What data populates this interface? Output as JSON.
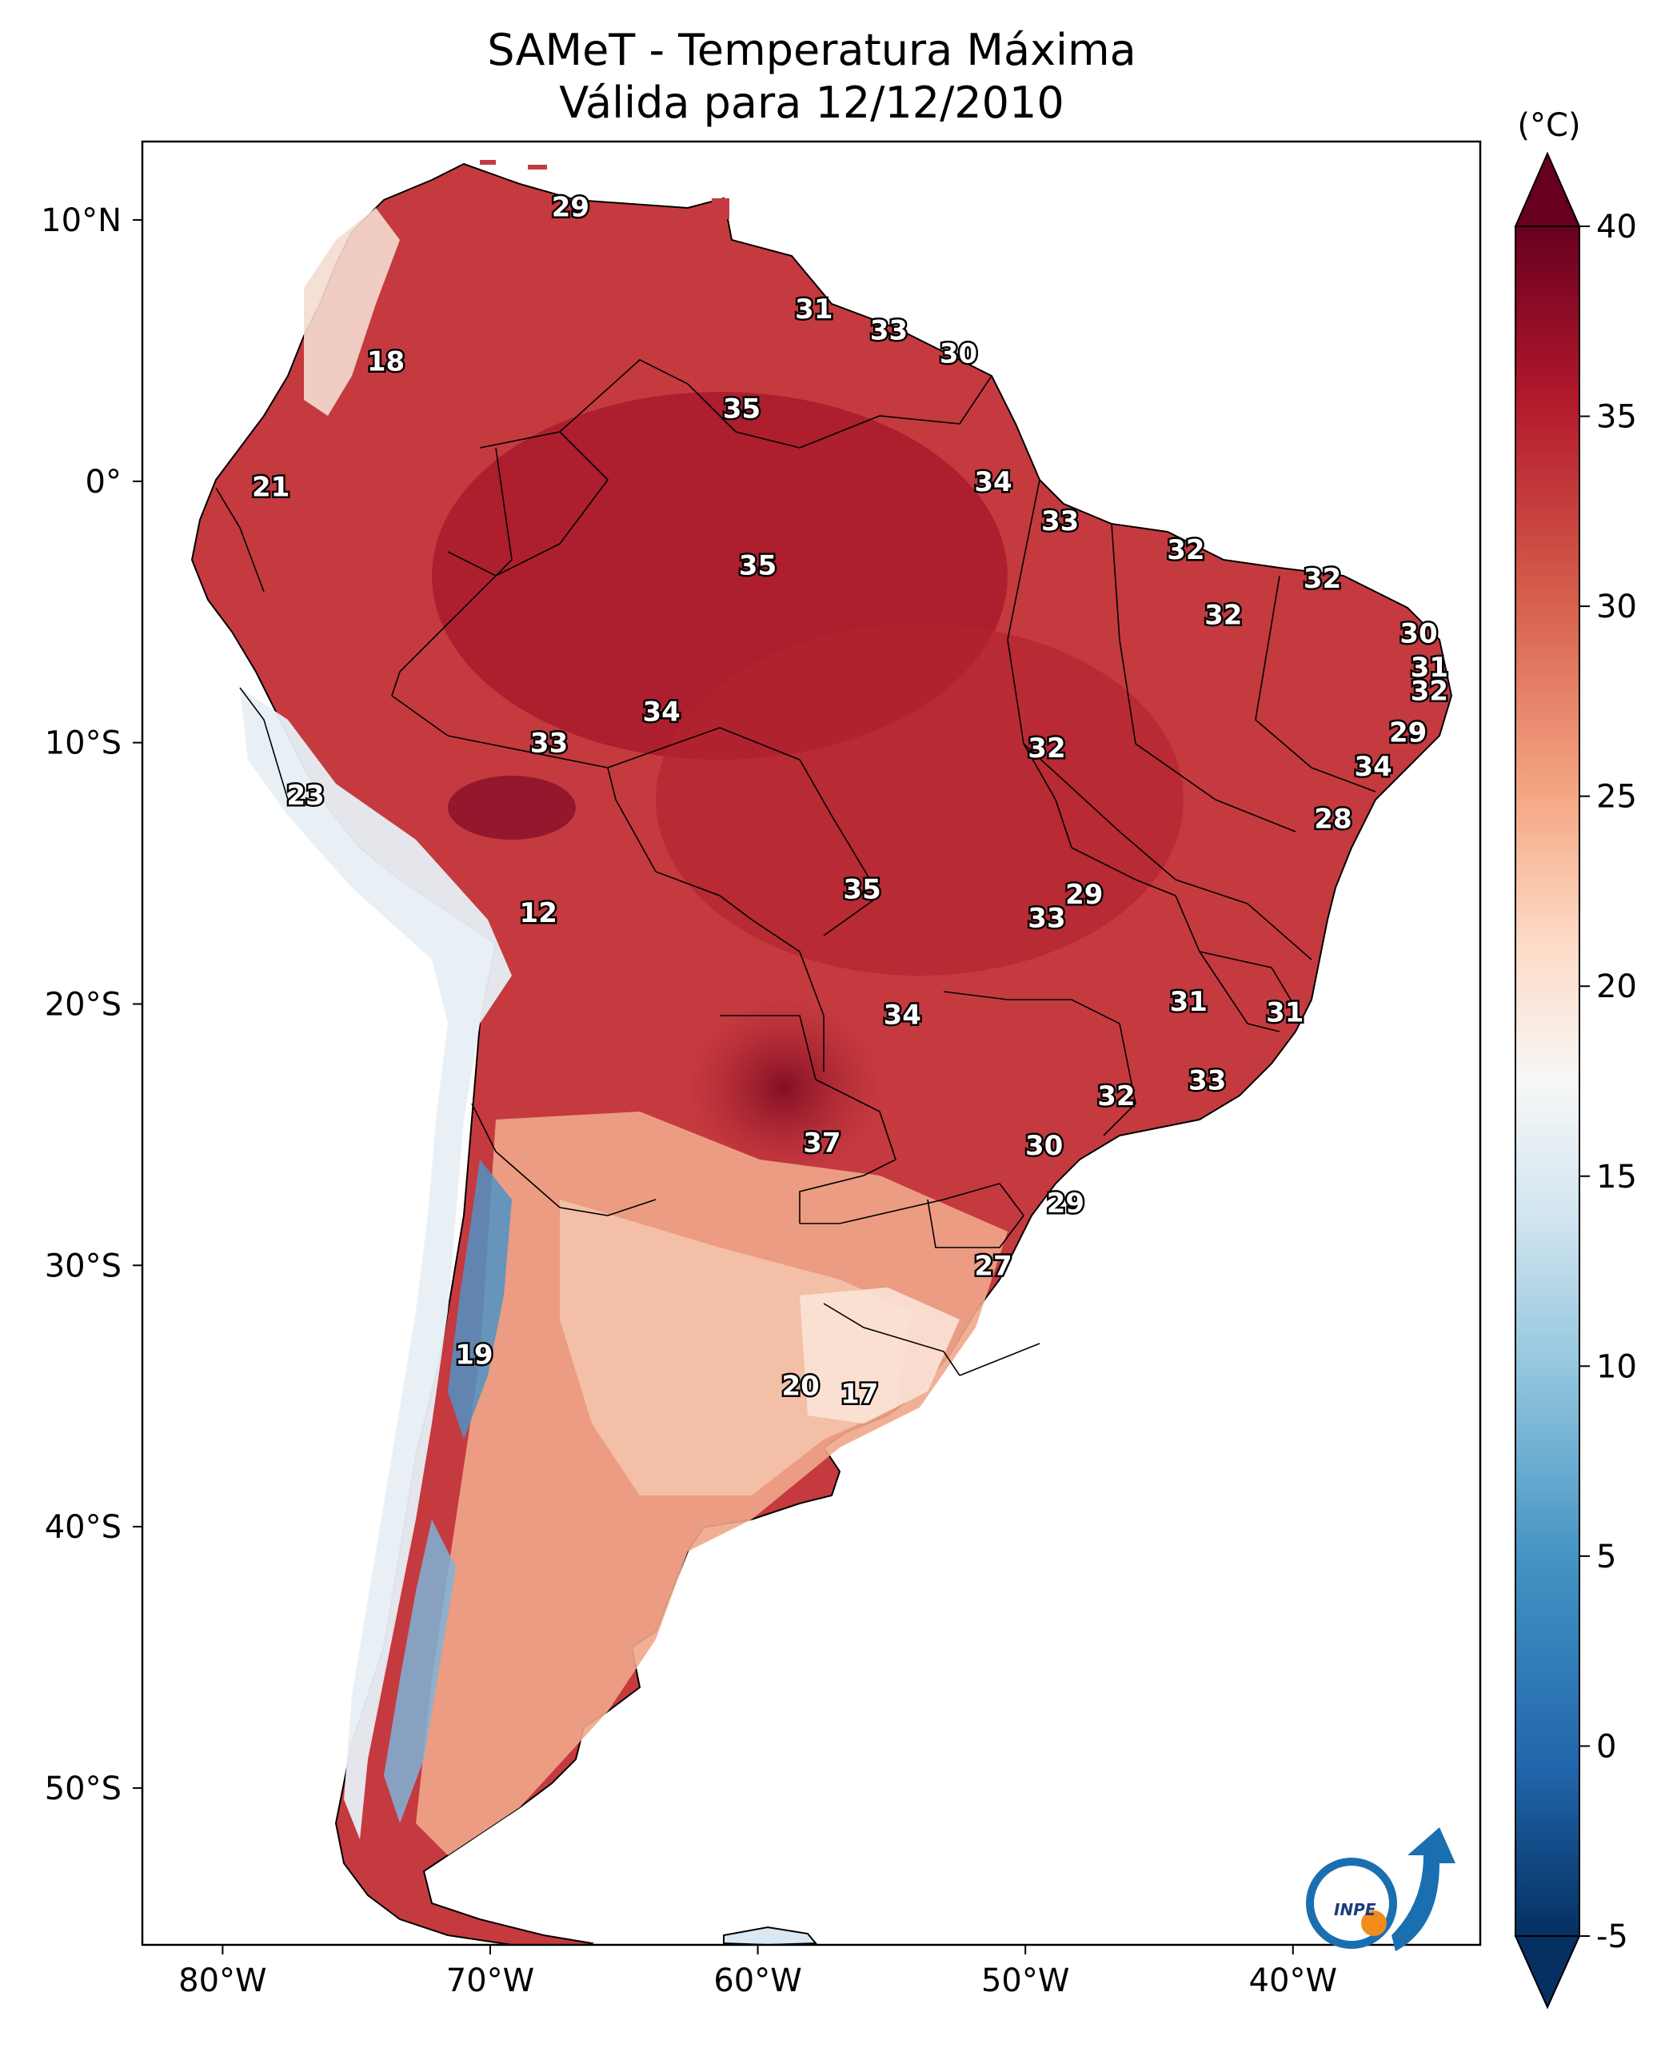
{
  "title": {
    "line1": "SAMeT - Temperatura Máxima",
    "line2": "Válida para 12/12/2010"
  },
  "map": {
    "lon_range": [
      -83,
      -33
    ],
    "lat_range": [
      -56,
      13
    ],
    "lon_ticks": [
      {
        "value": -80,
        "label": "80°W"
      },
      {
        "value": -70,
        "label": "70°W"
      },
      {
        "value": -60,
        "label": "60°W"
      },
      {
        "value": -50,
        "label": "50°W"
      },
      {
        "value": -40,
        "label": "40°W"
      }
    ],
    "lat_ticks": [
      {
        "value": 10,
        "label": "10°N"
      },
      {
        "value": 0,
        "label": "0°"
      },
      {
        "value": -10,
        "label": "10°S"
      },
      {
        "value": -20,
        "label": "20°S"
      },
      {
        "value": -30,
        "label": "30°S"
      },
      {
        "value": -40,
        "label": "40°S"
      },
      {
        "value": -50,
        "label": "50°S"
      }
    ],
    "station_values": [
      {
        "lon": -67,
        "lat": 10.5,
        "value": "29"
      },
      {
        "lon": -57.9,
        "lat": 6.6,
        "value": "31"
      },
      {
        "lon": -55.1,
        "lat": 5.8,
        "value": "33"
      },
      {
        "lon": -52.5,
        "lat": 4.9,
        "value": "30"
      },
      {
        "lon": -73.9,
        "lat": 4.6,
        "value": "18"
      },
      {
        "lon": -60.6,
        "lat": 2.8,
        "value": "35"
      },
      {
        "lon": -78.2,
        "lat": -0.2,
        "value": "21"
      },
      {
        "lon": -51.2,
        "lat": 0.0,
        "value": "34"
      },
      {
        "lon": -48.7,
        "lat": -1.5,
        "value": "33"
      },
      {
        "lon": -44.0,
        "lat": -2.6,
        "value": "32"
      },
      {
        "lon": -38.9,
        "lat": -3.7,
        "value": "32"
      },
      {
        "lon": -42.6,
        "lat": -5.1,
        "value": "32"
      },
      {
        "lon": -60.0,
        "lat": -3.2,
        "value": "35"
      },
      {
        "lon": -35.3,
        "lat": -5.8,
        "value": "30"
      },
      {
        "lon": -34.9,
        "lat": -7.1,
        "value": "31"
      },
      {
        "lon": -34.9,
        "lat": -8.0,
        "value": "32"
      },
      {
        "lon": -63.6,
        "lat": -8.8,
        "value": "34"
      },
      {
        "lon": -67.8,
        "lat": -10.0,
        "value": "33"
      },
      {
        "lon": -49.2,
        "lat": -10.2,
        "value": "32"
      },
      {
        "lon": -35.7,
        "lat": -9.6,
        "value": "29"
      },
      {
        "lon": -37.0,
        "lat": -10.9,
        "value": "34"
      },
      {
        "lon": -38.5,
        "lat": -12.9,
        "value": "28"
      },
      {
        "lon": -76.9,
        "lat": -12.0,
        "value": "23"
      },
      {
        "lon": -68.2,
        "lat": -16.5,
        "value": "12"
      },
      {
        "lon": -56.1,
        "lat": -15.6,
        "value": "35"
      },
      {
        "lon": -47.8,
        "lat": -15.8,
        "value": "29"
      },
      {
        "lon": -49.2,
        "lat": -16.7,
        "value": "33"
      },
      {
        "lon": -43.9,
        "lat": -19.9,
        "value": "31"
      },
      {
        "lon": -40.3,
        "lat": -20.3,
        "value": "31"
      },
      {
        "lon": -54.6,
        "lat": -20.4,
        "value": "34"
      },
      {
        "lon": -43.2,
        "lat": -22.9,
        "value": "33"
      },
      {
        "lon": -46.6,
        "lat": -23.5,
        "value": "32"
      },
      {
        "lon": -57.6,
        "lat": -25.3,
        "value": "37"
      },
      {
        "lon": -49.3,
        "lat": -25.4,
        "value": "30"
      },
      {
        "lon": -48.5,
        "lat": -27.6,
        "value": "29"
      },
      {
        "lon": -51.2,
        "lat": -30.0,
        "value": "27"
      },
      {
        "lon": -70.6,
        "lat": -33.4,
        "value": "19"
      },
      {
        "lon": -58.4,
        "lat": -34.6,
        "value": "20"
      },
      {
        "lon": -56.2,
        "lat": -34.9,
        "value": "17"
      }
    ],
    "logo_text": "INPE"
  },
  "colorbar": {
    "unit": "(°C)",
    "range": [
      -5,
      40
    ],
    "ticks": [
      {
        "value": 40,
        "label": "40"
      },
      {
        "value": 35,
        "label": "35"
      },
      {
        "value": 30,
        "label": "30"
      },
      {
        "value": 25,
        "label": "25"
      },
      {
        "value": 20,
        "label": "20"
      },
      {
        "value": 15,
        "label": "15"
      },
      {
        "value": 10,
        "label": "10"
      },
      {
        "value": 5,
        "label": "5"
      },
      {
        "value": 0,
        "label": "0"
      },
      {
        "value": -5,
        "label": "-5"
      }
    ],
    "colors": {
      "max": "#67001f",
      "warm": "#b2182b",
      "mid_warm": "#d6604d",
      "light_warm": "#f4a582",
      "pale": "#fddbc7",
      "neutral": "#f7f7f7",
      "pale_cool": "#d1e5f0",
      "light_cool": "#92c5de",
      "cool": "#4393c3",
      "mid_cool": "#2166ac",
      "min": "#053061"
    }
  }
}
